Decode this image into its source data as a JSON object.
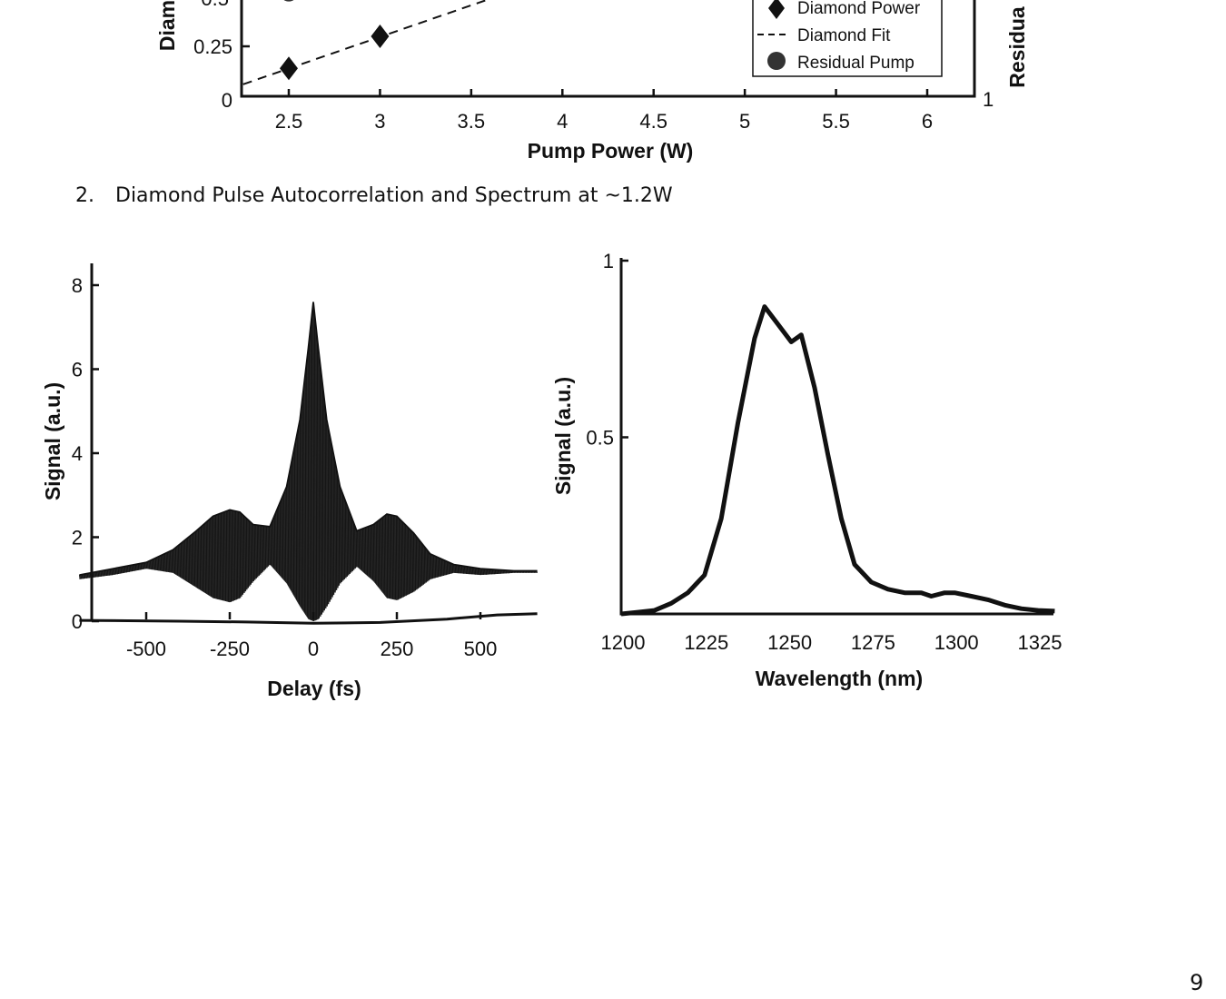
{
  "section_heading": {
    "number": "2.",
    "text": "Diamond Pulse Autocorrelation and Spectrum at ~1.2W"
  },
  "page_number": "9",
  "chart_data": [
    {
      "type": "scatter",
      "xlabel": "Pump Power (W)",
      "ylabel_left_visible": "Diam",
      "ylabel_right_visible": "Residua",
      "xlim": [
        2.25,
        6.25
      ],
      "x_ticks": [
        "2.5",
        "3",
        "3.5",
        "4",
        "4.5",
        "5",
        "5.5",
        "6"
      ],
      "y_ticks_left": [
        "0",
        "0.25",
        "0.5"
      ],
      "y_ticks_right": [
        "1"
      ],
      "series": [
        {
          "name": "Diamond Power",
          "marker": "diamond",
          "x": [
            2.5,
            3
          ],
          "y": [
            0.14,
            0.3
          ]
        },
        {
          "name": "Diamond Fit",
          "style": "dashed",
          "x": [
            2.25,
            3.8
          ],
          "y": [
            0.06,
            0.55
          ]
        },
        {
          "name": "Residual Pump",
          "marker": "circle",
          "x": [
            2.5
          ],
          "y": [
            0.52
          ]
        }
      ],
      "legend": [
        "Diamond Power",
        "Diamond Fit",
        "Residual Pump"
      ],
      "legend_position": "top-right"
    },
    {
      "type": "line",
      "xlabel": "Delay (fs)",
      "ylabel": "Signal (a.u.)",
      "xlim": [
        -700,
        670
      ],
      "ylim": [
        0,
        8.5
      ],
      "x_ticks": [
        "-500",
        "-250",
        "0",
        "250",
        "500"
      ],
      "y_ticks": [
        "0",
        "2",
        "4",
        "6",
        "8"
      ],
      "envelope_upper": {
        "x": [
          -700,
          -600,
          -500,
          -420,
          -350,
          -300,
          -250,
          -220,
          -180,
          -130,
          -80,
          -40,
          -15,
          0,
          15,
          40,
          80,
          130,
          180,
          220,
          250,
          300,
          350,
          420,
          500,
          600,
          670
        ],
        "y": [
          1.1,
          1.25,
          1.4,
          1.7,
          2.15,
          2.5,
          2.65,
          2.6,
          2.3,
          2.25,
          3.2,
          4.8,
          6.5,
          7.6,
          6.5,
          4.8,
          3.2,
          2.15,
          2.3,
          2.55,
          2.5,
          2.1,
          1.6,
          1.35,
          1.25,
          1.2,
          1.2
        ]
      },
      "envelope_lower": {
        "x": [
          -700,
          -600,
          -500,
          -420,
          -350,
          -300,
          -250,
          -220,
          -180,
          -130,
          -80,
          -40,
          -15,
          0,
          15,
          40,
          80,
          130,
          180,
          220,
          250,
          300,
          350,
          420,
          500,
          600,
          670
        ],
        "y": [
          1.0,
          1.1,
          1.25,
          1.15,
          0.8,
          0.55,
          0.45,
          0.55,
          0.95,
          1.35,
          0.9,
          0.35,
          0.05,
          0.0,
          0.05,
          0.35,
          0.9,
          1.3,
          0.95,
          0.55,
          0.5,
          0.7,
          1.0,
          1.15,
          1.1,
          1.15,
          1.15
        ]
      },
      "baseline": {
        "x": [
          -700,
          -400,
          -200,
          0,
          200,
          400,
          550,
          670
        ],
        "y": [
          0.02,
          0.0,
          -0.02,
          -0.05,
          -0.03,
          0.05,
          0.15,
          0.18
        ]
      }
    },
    {
      "type": "line",
      "xlabel": "Wavelength (nm)",
      "ylabel": "Signal (a.u.)",
      "xlim": [
        1200,
        1325
      ],
      "ylim": [
        0,
        1
      ],
      "x_ticks": [
        "1200",
        "1225",
        "1250",
        "1275",
        "1300",
        "1325"
      ],
      "y_ticks": [
        "0.5",
        "1"
      ],
      "series": [
        {
          "x": [
            1200,
            1205,
            1210,
            1215,
            1220,
            1225,
            1230,
            1235,
            1240,
            1243,
            1247,
            1251,
            1254,
            1258,
            1262,
            1266,
            1270,
            1275,
            1280,
            1285,
            1290,
            1293,
            1297,
            1300,
            1305,
            1310,
            1315,
            1320,
            1325
          ],
          "y": [
            0.0,
            0.005,
            0.01,
            0.03,
            0.06,
            0.11,
            0.27,
            0.54,
            0.78,
            0.87,
            0.82,
            0.77,
            0.79,
            0.64,
            0.45,
            0.27,
            0.14,
            0.09,
            0.07,
            0.06,
            0.06,
            0.05,
            0.06,
            0.06,
            0.05,
            0.04,
            0.025,
            0.015,
            0.01
          ]
        }
      ]
    }
  ]
}
